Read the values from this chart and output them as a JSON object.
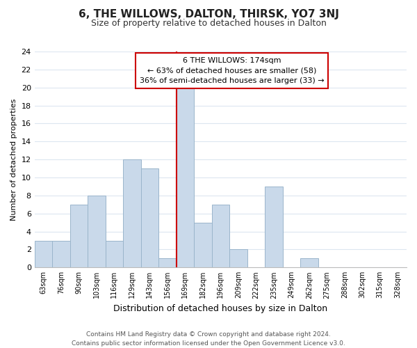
{
  "title": "6, THE WILLOWS, DALTON, THIRSK, YO7 3NJ",
  "subtitle": "Size of property relative to detached houses in Dalton",
  "xlabel": "Distribution of detached houses by size in Dalton",
  "ylabel": "Number of detached properties",
  "bin_labels": [
    "63sqm",
    "76sqm",
    "90sqm",
    "103sqm",
    "116sqm",
    "129sqm",
    "143sqm",
    "156sqm",
    "169sqm",
    "182sqm",
    "196sqm",
    "209sqm",
    "222sqm",
    "235sqm",
    "249sqm",
    "262sqm",
    "275sqm",
    "288sqm",
    "302sqm",
    "315sqm",
    "328sqm"
  ],
  "bar_values": [
    3,
    3,
    7,
    8,
    3,
    12,
    11,
    1,
    20,
    5,
    7,
    2,
    0,
    9,
    0,
    1,
    0,
    0,
    0,
    0,
    0
  ],
  "bar_color": "#c9d9ea",
  "bar_edge_color": "#9ab5cb",
  "highlight_line_idx": 8,
  "highlight_line_color": "#cc0000",
  "ylim": [
    0,
    24
  ],
  "yticks": [
    0,
    2,
    4,
    6,
    8,
    10,
    12,
    14,
    16,
    18,
    20,
    22,
    24
  ],
  "annotation_title": "6 THE WILLOWS: 174sqm",
  "annotation_line1": "← 63% of detached houses are smaller (58)",
  "annotation_line2": "36% of semi-detached houses are larger (33) →",
  "annotation_box_color": "#ffffff",
  "annotation_box_edge": "#cc0000",
  "footer_line1": "Contains HM Land Registry data © Crown copyright and database right 2024.",
  "footer_line2": "Contains public sector information licensed under the Open Government Licence v3.0.",
  "bg_color": "#ffffff",
  "grid_color": "#dce6f0"
}
